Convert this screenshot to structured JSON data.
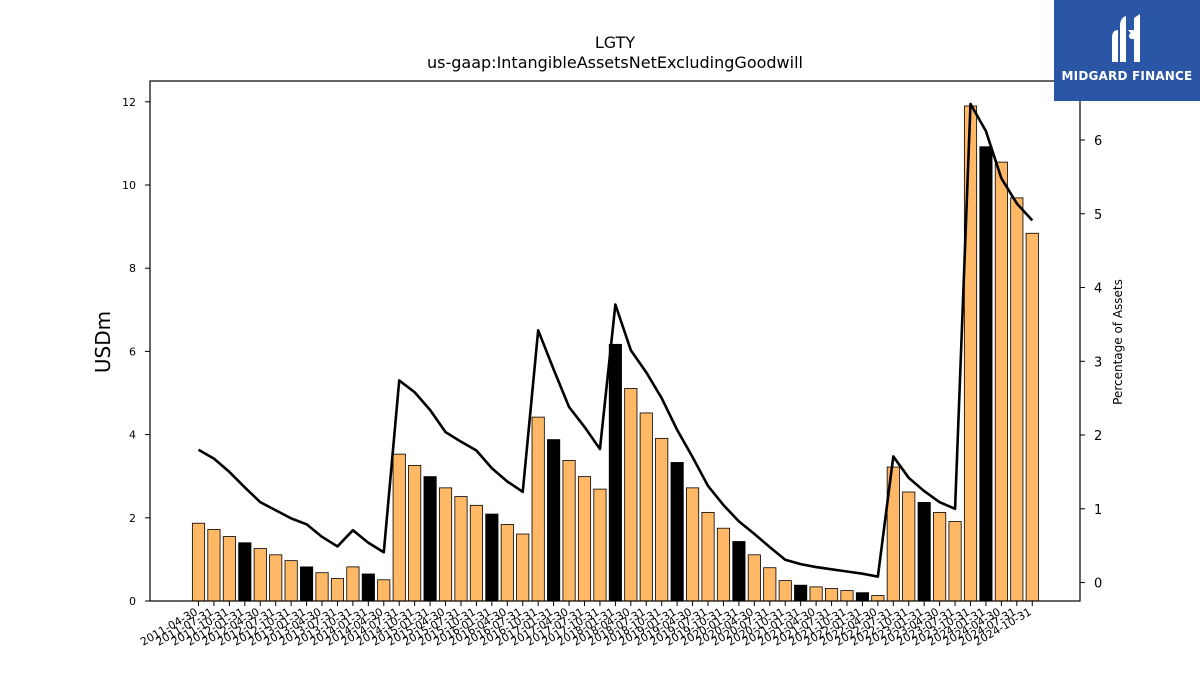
{
  "brand": {
    "name": "MIDGARD FINANCE",
    "icon": "midgard-logo-icon",
    "color": "#2b56a6"
  },
  "colors": {
    "annual_bar": "#000000",
    "quarter_bar": "#ffb866",
    "line": "#000000"
  },
  "chart_data": {
    "type": "bar",
    "title": "LGTY",
    "subtitle": "us-gaap:IntangibleAssetsNetExcludingGoodwill",
    "ylabel": "USDm",
    "y2label": "Percentage of Assets",
    "ylim": [
      0,
      12.5
    ],
    "y2lim": [
      -0.25,
      6.8
    ],
    "yticks": [
      0,
      2,
      4,
      6,
      8,
      10,
      12
    ],
    "y2ticks": [
      0,
      1,
      2,
      3,
      4,
      5,
      6
    ],
    "categories": [
      "2011-04-30",
      "2011-07-31",
      "2011-10-31",
      "2012-01-31",
      "2012-04-30",
      "2012-07-31",
      "2012-10-31",
      "2013-01-31",
      "2013-04-30",
      "2013-07-31",
      "2013-10-31",
      "2014-01-31",
      "2014-04-30",
      "2014-07-31",
      "2014-10-31",
      "2015-01-31",
      "2015-04-30",
      "2015-07-31",
      "2015-10-31",
      "2016-01-31",
      "2016-04-30",
      "2016-07-31",
      "2016-10-31",
      "2017-01-31",
      "2017-04-30",
      "2017-07-31",
      "2017-10-31",
      "2018-01-31",
      "2018-04-30",
      "2018-07-31",
      "2018-10-31",
      "2019-01-31",
      "2019-04-30",
      "2019-07-31",
      "2019-10-31",
      "2020-01-31",
      "2020-04-30",
      "2020-07-31",
      "2020-10-31",
      "2021-01-31",
      "2021-04-30",
      "2021-07-31",
      "2021-10-31",
      "2022-01-31",
      "2022-04-30",
      "2022-07-31",
      "2022-10-31",
      "2023-01-31",
      "2023-04-30",
      "2023-07-31",
      "2023-10-31",
      "2024-01-31",
      "2024-04-30",
      "2024-07-31",
      "2024-10-31"
    ],
    "annual_flags": [
      0,
      0,
      0,
      1,
      0,
      0,
      0,
      1,
      0,
      0,
      0,
      1,
      0,
      0,
      0,
      1,
      0,
      0,
      0,
      1,
      0,
      0,
      0,
      1,
      0,
      0,
      0,
      1,
      0,
      0,
      0,
      1,
      0,
      0,
      0,
      1,
      0,
      0,
      0,
      1,
      0,
      0,
      0,
      1,
      0,
      0,
      0,
      1,
      0,
      0,
      0,
      1,
      0,
      0,
      0
    ],
    "series": [
      {
        "name": "USDm",
        "kind": "bar",
        "values": [
          1.87,
          1.72,
          1.55,
          1.4,
          1.26,
          1.11,
          0.97,
          0.82,
          0.68,
          0.54,
          0.82,
          0.65,
          0.51,
          3.53,
          3.26,
          2.99,
          2.72,
          2.51,
          2.3,
          2.09,
          1.84,
          1.61,
          4.42,
          3.88,
          3.38,
          2.99,
          2.69,
          6.17,
          5.11,
          4.52,
          3.91,
          3.33,
          2.72,
          2.13,
          1.75,
          1.43,
          1.11,
          0.8,
          0.49,
          0.38,
          0.34,
          0.3,
          0.25,
          0.2,
          0.13,
          3.22,
          2.62,
          2.37,
          2.13,
          1.91,
          11.9,
          10.92,
          10.55,
          9.69,
          8.84
        ]
      },
      {
        "name": "Percentage of Assets",
        "kind": "line",
        "values": [
          1.8,
          1.68,
          1.5,
          1.29,
          1.09,
          0.98,
          0.87,
          0.79,
          0.62,
          0.49,
          0.71,
          0.54,
          0.41,
          2.74,
          2.58,
          2.34,
          2.04,
          1.91,
          1.79,
          1.55,
          1.37,
          1.23,
          3.42,
          2.89,
          2.38,
          2.11,
          1.81,
          3.77,
          3.15,
          2.85,
          2.5,
          2.07,
          1.7,
          1.31,
          1.05,
          0.83,
          0.66,
          0.48,
          0.31,
          0.25,
          0.21,
          0.18,
          0.15,
          0.12,
          0.08,
          1.71,
          1.42,
          1.24,
          1.09,
          1.0,
          6.49,
          6.12,
          5.48,
          5.14,
          4.91
        ]
      }
    ]
  }
}
